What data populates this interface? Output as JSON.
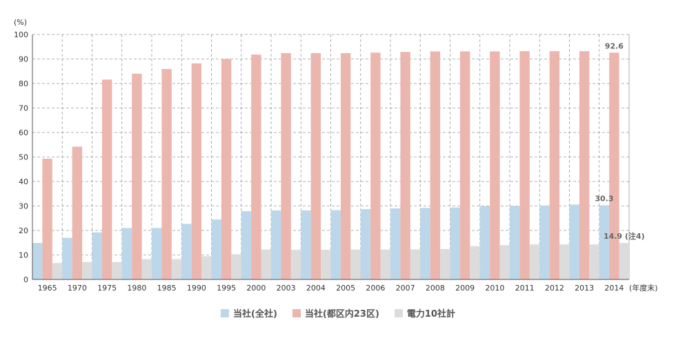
{
  "chart_data": {
    "type": "bar",
    "title": "",
    "ylabel_unit": "(%)",
    "xlabel_unit": "(年度末)",
    "ylim": [
      0,
      100
    ],
    "yticks": [
      0,
      10,
      20,
      30,
      40,
      50,
      60,
      70,
      80,
      90,
      100
    ],
    "grid": true,
    "legend_position": "bottom",
    "categories": [
      "1965",
      "1970",
      "1975",
      "1980",
      "1985",
      "1990",
      "1995",
      "2000",
      "2003",
      "2004",
      "2005",
      "2006",
      "2007",
      "2008",
      "2009",
      "2010",
      "2011",
      "2012",
      "2013",
      "2014"
    ],
    "series": [
      {
        "name": "当社(全社)",
        "color": "#bdd7ea",
        "values": [
          14.9,
          17.0,
          19.2,
          21.0,
          21.0,
          22.7,
          24.5,
          27.9,
          28.2,
          28.2,
          28.3,
          28.7,
          29.0,
          29.2,
          29.4,
          29.9,
          30.0,
          30.2,
          30.6,
          30.3
        ]
      },
      {
        "name": "当社(都区内23区)",
        "color": "#ebb6ae",
        "values": [
          49.3,
          54.2,
          81.6,
          84.0,
          85.9,
          88.2,
          90.0,
          91.8,
          92.4,
          92.4,
          92.4,
          92.6,
          92.9,
          93.1,
          93.1,
          93.1,
          93.2,
          93.2,
          93.2,
          92.6
        ]
      },
      {
        "name": "電力10社計",
        "color": "#dcdcdc",
        "values": [
          6.7,
          7.1,
          7.1,
          8.3,
          8.3,
          9.5,
          10.3,
          12.2,
          12.1,
          12.1,
          12.2,
          12.2,
          12.3,
          12.4,
          13.6,
          14.0,
          14.3,
          14.3,
          14.3,
          14.9
        ]
      }
    ],
    "annotations": [
      {
        "text": "92.6",
        "series": 1,
        "category": "2014"
      },
      {
        "text": "30.3",
        "series": 0,
        "category": "2014"
      },
      {
        "text": "14.9 (注4)",
        "series": 2,
        "category": "2014"
      }
    ]
  }
}
